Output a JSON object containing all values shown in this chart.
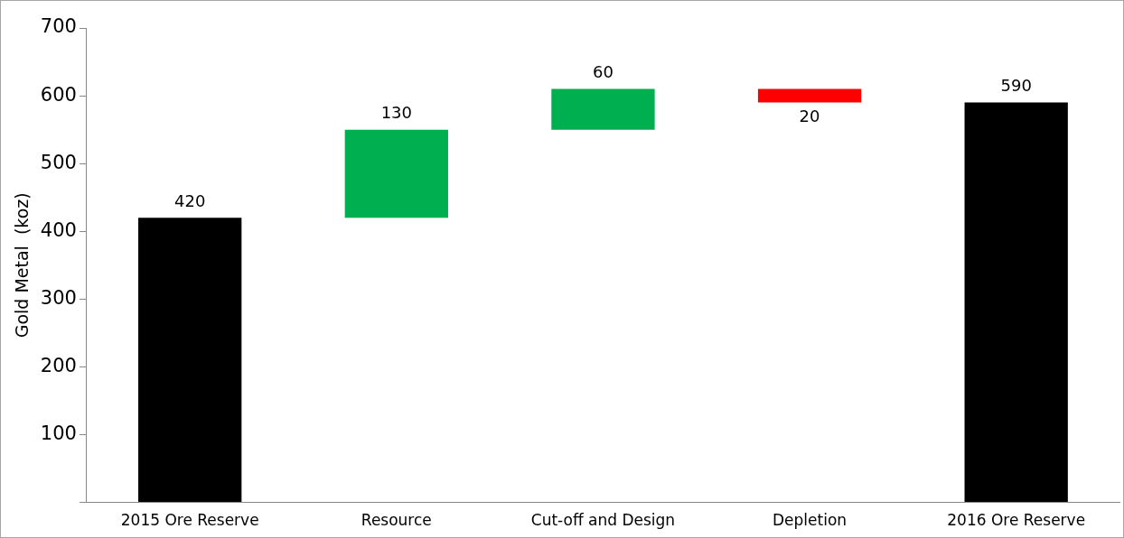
{
  "chart_data": {
    "type": "bar",
    "ylabel": "Gold Metal  (koz)",
    "categories": [
      "2015 Ore Reserve",
      "Resource",
      "Cut-off and Design",
      "Depletion",
      "2016 Ore Reserve"
    ],
    "values": [
      420,
      130,
      60,
      -20,
      590
    ],
    "base": [
      0,
      420,
      550,
      610,
      0
    ],
    "colors": [
      "#000000",
      "#00b050",
      "#00b050",
      "#ff0000",
      "#000000"
    ],
    "value_labels": [
      "420",
      "130",
      "60",
      "20",
      "590"
    ],
    "ylim": [
      0,
      700
    ],
    "yticks": [
      {
        "value": 0,
        "label": null
      },
      100,
      200,
      300,
      400,
      500,
      600,
      700
    ],
    "grid": false,
    "legend": false
  }
}
